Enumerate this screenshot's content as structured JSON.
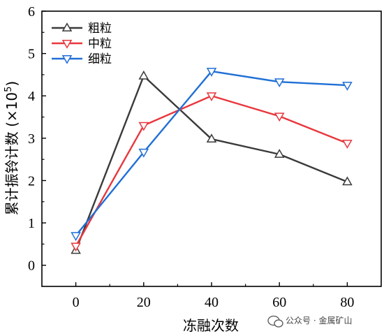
{
  "chart_data": {
    "type": "line",
    "xlabel": "冻融次数",
    "ylabel": "累计振铃计数 (×10",
    "ylabel_sup": "5",
    "ylabel_close": ")",
    "xlim": [
      -10,
      90
    ],
    "ylim": [
      -0.5,
      6
    ],
    "x_ticks": [
      0,
      20,
      40,
      60,
      80
    ],
    "x_tick_labels": [
      "0",
      "20",
      "40",
      "60",
      "80"
    ],
    "y_ticks": [
      0,
      1,
      2,
      3,
      4,
      5,
      6
    ],
    "y_tick_labels": [
      "0",
      "1",
      "2",
      "3",
      "4",
      "5",
      "6"
    ],
    "grid": false,
    "legend_position": "top-left",
    "x": [
      0,
      20,
      40,
      60,
      80
    ],
    "series": [
      {
        "name": "粗粒",
        "values": [
          0.35,
          4.47,
          2.98,
          2.62,
          1.97
        ],
        "color": "#3a3a3a",
        "marker": "triangle-up"
      },
      {
        "name": "中粒",
        "values": [
          0.45,
          3.3,
          4.0,
          3.52,
          2.88
        ],
        "color": "#e8373d",
        "marker": "triangle-down"
      },
      {
        "name": "细粒",
        "values": [
          0.7,
          2.67,
          4.58,
          4.33,
          4.25
        ],
        "color": "#1f6fd6",
        "marker": "triangle-down"
      }
    ]
  },
  "watermark": {
    "text": "公众号 · 金属矿山",
    "icon": "wechat-icon"
  }
}
